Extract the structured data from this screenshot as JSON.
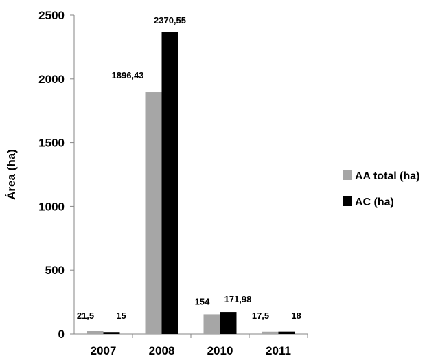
{
  "chart_data": {
    "type": "bar",
    "title": "",
    "xlabel": "",
    "ylabel": "Área (ha)",
    "categories": [
      "2007",
      "2008",
      "2010",
      "2011"
    ],
    "ylim": [
      0,
      2500
    ],
    "yticks": [
      0,
      500,
      1000,
      1500,
      2000,
      2500
    ],
    "grid": false,
    "legend_position": "right",
    "series": [
      {
        "name": "AA total (ha)",
        "color": "#a6a6a6",
        "values": [
          21.5,
          1896.43,
          154,
          17.5
        ],
        "labels": [
          "21,5",
          "1896,43",
          "154",
          "17,5"
        ]
      },
      {
        "name": "AC (ha)",
        "color": "#000000",
        "values": [
          15,
          2370.55,
          171.98,
          18
        ],
        "labels": [
          "15",
          "2370,55",
          "171,98",
          "18"
        ]
      }
    ]
  }
}
